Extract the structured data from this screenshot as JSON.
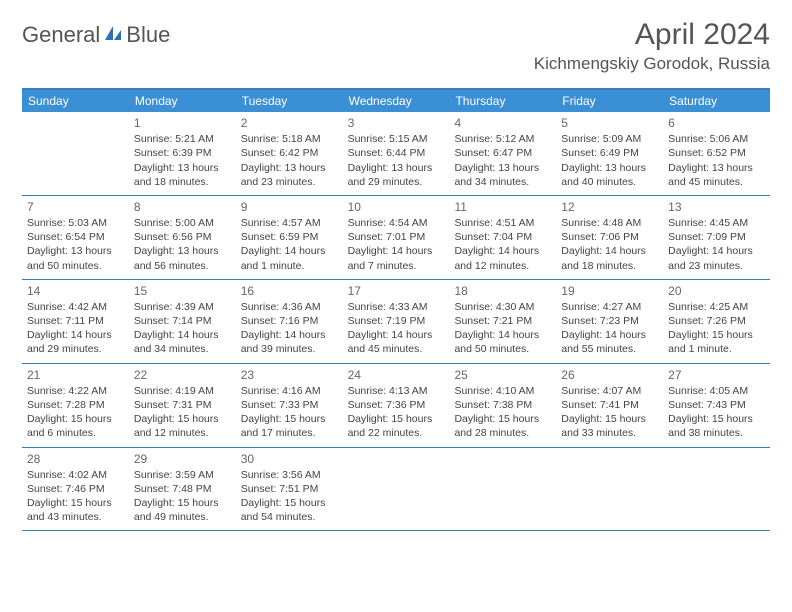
{
  "logo": {
    "left": "General",
    "right": "Blue"
  },
  "title": "April 2024",
  "location": "Kichmengskiy Gorodok, Russia",
  "weekdays": [
    "Sunday",
    "Monday",
    "Tuesday",
    "Wednesday",
    "Thursday",
    "Friday",
    "Saturday"
  ],
  "colors": {
    "header_bg": "#3b8fd4",
    "border": "#3b7fbf",
    "text": "#444444"
  },
  "weeks": [
    [
      {
        "n": "",
        "lines": []
      },
      {
        "n": "1",
        "lines": [
          "Sunrise: 5:21 AM",
          "Sunset: 6:39 PM",
          "Daylight: 13 hours",
          "and 18 minutes."
        ]
      },
      {
        "n": "2",
        "lines": [
          "Sunrise: 5:18 AM",
          "Sunset: 6:42 PM",
          "Daylight: 13 hours",
          "and 23 minutes."
        ]
      },
      {
        "n": "3",
        "lines": [
          "Sunrise: 5:15 AM",
          "Sunset: 6:44 PM",
          "Daylight: 13 hours",
          "and 29 minutes."
        ]
      },
      {
        "n": "4",
        "lines": [
          "Sunrise: 5:12 AM",
          "Sunset: 6:47 PM",
          "Daylight: 13 hours",
          "and 34 minutes."
        ]
      },
      {
        "n": "5",
        "lines": [
          "Sunrise: 5:09 AM",
          "Sunset: 6:49 PM",
          "Daylight: 13 hours",
          "and 40 minutes."
        ]
      },
      {
        "n": "6",
        "lines": [
          "Sunrise: 5:06 AM",
          "Sunset: 6:52 PM",
          "Daylight: 13 hours",
          "and 45 minutes."
        ]
      }
    ],
    [
      {
        "n": "7",
        "lines": [
          "Sunrise: 5:03 AM",
          "Sunset: 6:54 PM",
          "Daylight: 13 hours",
          "and 50 minutes."
        ]
      },
      {
        "n": "8",
        "lines": [
          "Sunrise: 5:00 AM",
          "Sunset: 6:56 PM",
          "Daylight: 13 hours",
          "and 56 minutes."
        ]
      },
      {
        "n": "9",
        "lines": [
          "Sunrise: 4:57 AM",
          "Sunset: 6:59 PM",
          "Daylight: 14 hours",
          "and 1 minute."
        ]
      },
      {
        "n": "10",
        "lines": [
          "Sunrise: 4:54 AM",
          "Sunset: 7:01 PM",
          "Daylight: 14 hours",
          "and 7 minutes."
        ]
      },
      {
        "n": "11",
        "lines": [
          "Sunrise: 4:51 AM",
          "Sunset: 7:04 PM",
          "Daylight: 14 hours",
          "and 12 minutes."
        ]
      },
      {
        "n": "12",
        "lines": [
          "Sunrise: 4:48 AM",
          "Sunset: 7:06 PM",
          "Daylight: 14 hours",
          "and 18 minutes."
        ]
      },
      {
        "n": "13",
        "lines": [
          "Sunrise: 4:45 AM",
          "Sunset: 7:09 PM",
          "Daylight: 14 hours",
          "and 23 minutes."
        ]
      }
    ],
    [
      {
        "n": "14",
        "lines": [
          "Sunrise: 4:42 AM",
          "Sunset: 7:11 PM",
          "Daylight: 14 hours",
          "and 29 minutes."
        ]
      },
      {
        "n": "15",
        "lines": [
          "Sunrise: 4:39 AM",
          "Sunset: 7:14 PM",
          "Daylight: 14 hours",
          "and 34 minutes."
        ]
      },
      {
        "n": "16",
        "lines": [
          "Sunrise: 4:36 AM",
          "Sunset: 7:16 PM",
          "Daylight: 14 hours",
          "and 39 minutes."
        ]
      },
      {
        "n": "17",
        "lines": [
          "Sunrise: 4:33 AM",
          "Sunset: 7:19 PM",
          "Daylight: 14 hours",
          "and 45 minutes."
        ]
      },
      {
        "n": "18",
        "lines": [
          "Sunrise: 4:30 AM",
          "Sunset: 7:21 PM",
          "Daylight: 14 hours",
          "and 50 minutes."
        ]
      },
      {
        "n": "19",
        "lines": [
          "Sunrise: 4:27 AM",
          "Sunset: 7:23 PM",
          "Daylight: 14 hours",
          "and 55 minutes."
        ]
      },
      {
        "n": "20",
        "lines": [
          "Sunrise: 4:25 AM",
          "Sunset: 7:26 PM",
          "Daylight: 15 hours",
          "and 1 minute."
        ]
      }
    ],
    [
      {
        "n": "21",
        "lines": [
          "Sunrise: 4:22 AM",
          "Sunset: 7:28 PM",
          "Daylight: 15 hours",
          "and 6 minutes."
        ]
      },
      {
        "n": "22",
        "lines": [
          "Sunrise: 4:19 AM",
          "Sunset: 7:31 PM",
          "Daylight: 15 hours",
          "and 12 minutes."
        ]
      },
      {
        "n": "23",
        "lines": [
          "Sunrise: 4:16 AM",
          "Sunset: 7:33 PM",
          "Daylight: 15 hours",
          "and 17 minutes."
        ]
      },
      {
        "n": "24",
        "lines": [
          "Sunrise: 4:13 AM",
          "Sunset: 7:36 PM",
          "Daylight: 15 hours",
          "and 22 minutes."
        ]
      },
      {
        "n": "25",
        "lines": [
          "Sunrise: 4:10 AM",
          "Sunset: 7:38 PM",
          "Daylight: 15 hours",
          "and 28 minutes."
        ]
      },
      {
        "n": "26",
        "lines": [
          "Sunrise: 4:07 AM",
          "Sunset: 7:41 PM",
          "Daylight: 15 hours",
          "and 33 minutes."
        ]
      },
      {
        "n": "27",
        "lines": [
          "Sunrise: 4:05 AM",
          "Sunset: 7:43 PM",
          "Daylight: 15 hours",
          "and 38 minutes."
        ]
      }
    ],
    [
      {
        "n": "28",
        "lines": [
          "Sunrise: 4:02 AM",
          "Sunset: 7:46 PM",
          "Daylight: 15 hours",
          "and 43 minutes."
        ]
      },
      {
        "n": "29",
        "lines": [
          "Sunrise: 3:59 AM",
          "Sunset: 7:48 PM",
          "Daylight: 15 hours",
          "and 49 minutes."
        ]
      },
      {
        "n": "30",
        "lines": [
          "Sunrise: 3:56 AM",
          "Sunset: 7:51 PM",
          "Daylight: 15 hours",
          "and 54 minutes."
        ]
      },
      {
        "n": "",
        "lines": []
      },
      {
        "n": "",
        "lines": []
      },
      {
        "n": "",
        "lines": []
      },
      {
        "n": "",
        "lines": []
      }
    ]
  ]
}
